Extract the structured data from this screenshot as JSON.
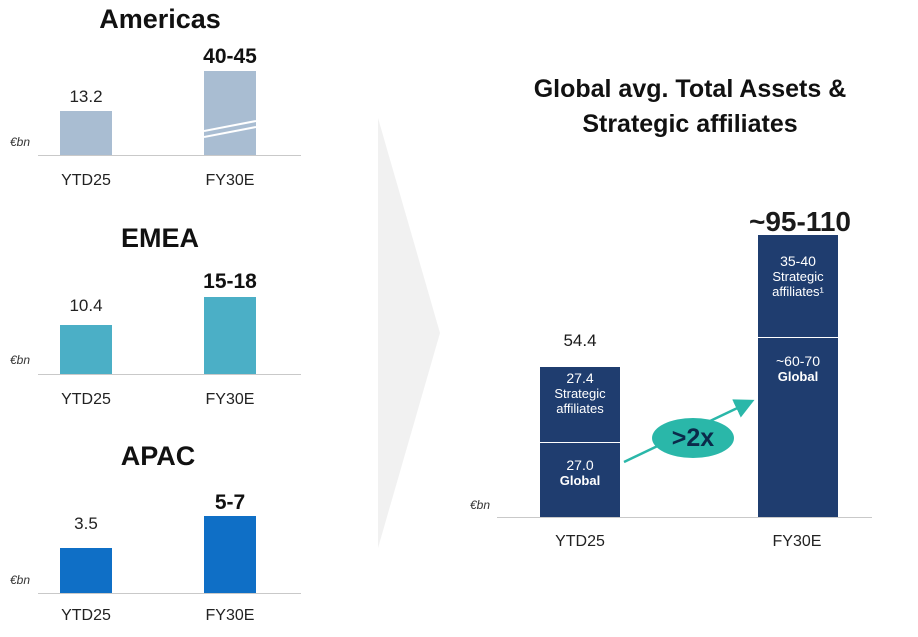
{
  "colors": {
    "americas": "#a9bdd2",
    "emea": "#4bafc6",
    "apac": "#0f6fc6",
    "global_bar": "#1f3d6f",
    "accent": "#2ab7a9"
  },
  "chart_data": [
    {
      "type": "bar",
      "title": "Americas",
      "ylabel": "€bn",
      "categories": [
        "YTD25",
        "FY30E"
      ],
      "values": [
        13.2,
        42.5
      ],
      "value_labels": [
        "13.2",
        "40-45"
      ],
      "axis_break_on": "FY30E"
    },
    {
      "type": "bar",
      "title": "EMEA",
      "ylabel": "€bn",
      "categories": [
        "YTD25",
        "FY30E"
      ],
      "values": [
        10.4,
        16.5
      ],
      "value_labels": [
        "10.4",
        "15-18"
      ]
    },
    {
      "type": "bar",
      "title": "APAC",
      "ylabel": "€bn",
      "categories": [
        "YTD25",
        "FY30E"
      ],
      "values": [
        3.5,
        6
      ],
      "value_labels": [
        "3.5",
        "5-7"
      ]
    },
    {
      "type": "bar",
      "stacked": true,
      "title": "Global avg. Total Assets & Strategic affiliates",
      "title_lines": [
        "Global avg. Total Assets &",
        "Strategic affiliates"
      ],
      "ylabel": "€bn",
      "categories": [
        "YTD25",
        "FY30E"
      ],
      "series": [
        {
          "name": "Global",
          "values": [
            27.0,
            65
          ],
          "value_labels": [
            "27.0",
            "~60-70"
          ]
        },
        {
          "name": "Strategic affiliates",
          "values": [
            27.4,
            37.5
          ],
          "value_labels": [
            "27.4",
            "35-40"
          ],
          "names": [
            "Strategic affiliates",
            "Strategic affiliates¹"
          ]
        }
      ],
      "totals": [
        "54.4",
        "~95-110"
      ],
      "annotation": ">2x"
    }
  ]
}
